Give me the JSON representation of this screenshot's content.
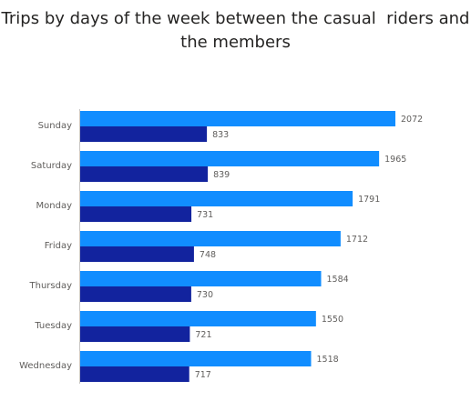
{
  "title_lines": [
    "Trips by days of the week between the casual  riders and",
    "the members"
  ],
  "colors": {
    "series_1": "#118dff",
    "series_2": "#12239e",
    "axis_line": "#c8c6c4"
  },
  "chart_data": {
    "type": "bar",
    "orientation": "horizontal",
    "title": "Trips by days of the week between the casual  riders and the members",
    "xlabel": "",
    "ylabel": "",
    "categories": [
      "Sunday",
      "Saturday",
      "Monday",
      "Friday",
      "Thursday",
      "Tuesday",
      "Wednesday"
    ],
    "series": [
      {
        "values": [
          2072,
          1965,
          1791,
          1712,
          1584,
          1550,
          1518
        ]
      },
      {
        "values": [
          833,
          839,
          731,
          748,
          730,
          721,
          717
        ]
      }
    ],
    "xlim": [
      0,
      2072
    ],
    "grid": false,
    "legend": "none",
    "data_labels": true
  }
}
